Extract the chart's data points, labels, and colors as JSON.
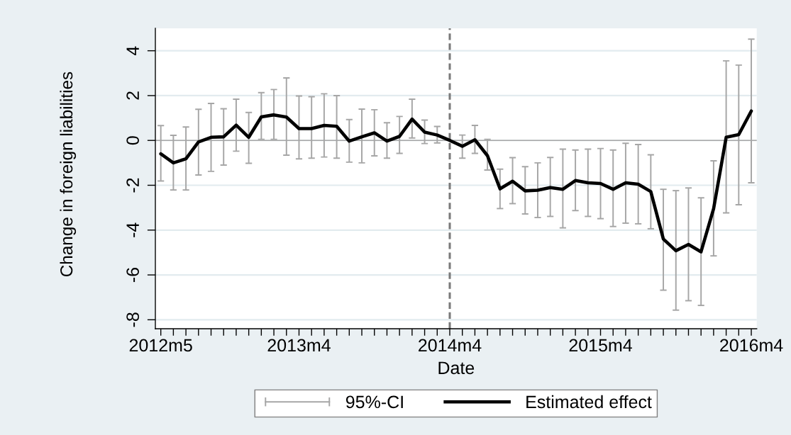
{
  "chart_data": {
    "type": "line",
    "xlabel": "Date",
    "ylabel": "Change in foreign liabilities",
    "x": [
      "2012-05",
      "2012-06",
      "2012-07",
      "2012-08",
      "2012-09",
      "2012-10",
      "2012-11",
      "2012-12",
      "2013-01",
      "2013-02",
      "2013-03",
      "2013-04",
      "2013-05",
      "2013-06",
      "2013-07",
      "2013-08",
      "2013-09",
      "2013-10",
      "2013-11",
      "2013-12",
      "2014-01",
      "2014-02",
      "2014-03",
      "2014-04",
      "2014-05",
      "2014-06",
      "2014-07",
      "2014-08",
      "2014-09",
      "2014-10",
      "2014-11",
      "2014-12",
      "2015-01",
      "2015-02",
      "2015-03",
      "2015-04",
      "2015-05",
      "2015-06",
      "2015-07",
      "2015-08",
      "2015-09",
      "2015-10",
      "2015-11",
      "2015-12",
      "2016-01",
      "2016-02",
      "2016-03",
      "2016-04"
    ],
    "series": [
      {
        "name": "Estimated effect",
        "color": "#000000",
        "values": [
          -0.6,
          -1.0,
          -0.82,
          -0.07,
          0.14,
          0.16,
          0.68,
          0.14,
          1.05,
          1.14,
          1.04,
          0.53,
          0.53,
          0.67,
          0.63,
          -0.03,
          0.16,
          0.34,
          -0.03,
          0.18,
          0.95,
          0.37,
          0.24,
          0.0,
          -0.26,
          0.03,
          -0.68,
          -2.16,
          -1.82,
          -2.25,
          -2.22,
          -2.1,
          -2.18,
          -1.79,
          -1.89,
          -1.92,
          -2.18,
          -1.89,
          -1.95,
          -2.28,
          -4.4,
          -4.92,
          -4.64,
          -4.97,
          -3.05,
          0.14,
          0.26,
          1.31
        ],
        "errors": [
          [
            -1.81,
            0.66
          ],
          [
            -2.21,
            0.23
          ],
          [
            -2.21,
            0.6
          ],
          [
            -1.54,
            1.39
          ],
          [
            -1.38,
            1.65
          ],
          [
            -1.1,
            1.41
          ],
          [
            -0.48,
            1.84
          ],
          [
            -1.02,
            1.25
          ],
          [
            0.05,
            2.13
          ],
          [
            0.05,
            2.27
          ],
          [
            -0.66,
            2.79
          ],
          [
            -0.82,
            1.98
          ],
          [
            -0.79,
            1.95
          ],
          [
            -0.74,
            2.08
          ],
          [
            -0.79,
            2.0
          ],
          [
            -0.97,
            0.93
          ],
          [
            -1.0,
            1.4
          ],
          [
            -0.69,
            1.37
          ],
          [
            -0.79,
            0.79
          ],
          [
            -0.58,
            1.07
          ],
          [
            0.11,
            1.84
          ],
          [
            -0.14,
            0.91
          ],
          [
            -0.11,
            0.62
          ],
          null,
          [
            -0.79,
            0.24
          ],
          [
            -0.58,
            0.67
          ],
          [
            -1.32,
            0.05
          ],
          [
            -3.04,
            -1.28
          ],
          [
            -2.82,
            -0.77
          ],
          [
            -3.28,
            -1.17
          ],
          [
            -3.44,
            -1.0
          ],
          [
            -3.39,
            -0.76
          ],
          [
            -3.9,
            -0.39
          ],
          [
            -3.13,
            -0.43
          ],
          [
            -3.39,
            -0.39
          ],
          [
            -3.49,
            -0.36
          ],
          [
            -3.84,
            -0.43
          ],
          [
            -3.69,
            -0.13
          ],
          [
            -3.72,
            -0.18
          ],
          [
            -3.94,
            -0.64
          ],
          [
            -6.68,
            -2.18
          ],
          [
            -7.57,
            -2.24
          ],
          [
            -7.15,
            -2.12
          ],
          [
            -7.36,
            -2.56
          ],
          [
            -5.15,
            -0.91
          ],
          [
            -3.23,
            3.55
          ],
          [
            -2.87,
            3.36
          ],
          [
            -1.89,
            4.52
          ]
        ]
      }
    ],
    "annotations": [
      "95%-CI"
    ],
    "xlim": [
      "2012-04-18",
      "2016-04-14"
    ],
    "ylim": [
      -8.4,
      5.0
    ],
    "xticks": [
      {
        "value": "2012-05",
        "label": "2012m5"
      },
      {
        "value": "2012-06",
        "label": null
      },
      {
        "value": "2012-07",
        "label": null
      },
      {
        "value": "2012-08",
        "label": null
      },
      {
        "value": "2012-09",
        "label": null
      },
      {
        "value": "2012-10",
        "label": null
      },
      {
        "value": "2012-11",
        "label": null
      },
      {
        "value": "2012-12",
        "label": null
      },
      {
        "value": "2013-01",
        "label": null
      },
      {
        "value": "2013-02",
        "label": null
      },
      {
        "value": "2013-03",
        "label": null
      },
      {
        "value": "2013-04",
        "label": "2013m4"
      },
      {
        "value": "2013-05",
        "label": null
      },
      {
        "value": "2013-06",
        "label": null
      },
      {
        "value": "2013-07",
        "label": null
      },
      {
        "value": "2013-08",
        "label": null
      },
      {
        "value": "2013-09",
        "label": null
      },
      {
        "value": "2013-10",
        "label": null
      },
      {
        "value": "2013-11",
        "label": null
      },
      {
        "value": "2013-12",
        "label": null
      },
      {
        "value": "2014-01",
        "label": null
      },
      {
        "value": "2014-02",
        "label": null
      },
      {
        "value": "2014-03",
        "label": null
      },
      {
        "value": "2014-04",
        "label": "2014m4"
      },
      {
        "value": "2014-05",
        "label": null
      },
      {
        "value": "2014-06",
        "label": null
      },
      {
        "value": "2014-07",
        "label": null
      },
      {
        "value": "2014-08",
        "label": null
      },
      {
        "value": "2014-09",
        "label": null
      },
      {
        "value": "2014-10",
        "label": null
      },
      {
        "value": "2014-11",
        "label": null
      },
      {
        "value": "2014-12",
        "label": null
      },
      {
        "value": "2015-01",
        "label": null
      },
      {
        "value": "2015-02",
        "label": null
      },
      {
        "value": "2015-03",
        "label": null
      },
      {
        "value": "2015-04",
        "label": "2015m4"
      },
      {
        "value": "2015-05",
        "label": null
      },
      {
        "value": "2015-06",
        "label": null
      },
      {
        "value": "2015-07",
        "label": null
      },
      {
        "value": "2015-08",
        "label": null
      },
      {
        "value": "2015-09",
        "label": null
      },
      {
        "value": "2015-10",
        "label": null
      },
      {
        "value": "2015-11",
        "label": null
      },
      {
        "value": "2015-12",
        "label": null
      },
      {
        "value": "2016-01",
        "label": null
      },
      {
        "value": "2016-02",
        "label": null
      },
      {
        "value": "2016-03",
        "label": null
      },
      {
        "value": "2016-04",
        "label": "2016m4"
      }
    ],
    "yticks": [
      -8,
      -6,
      -4,
      -2,
      0,
      2,
      4
    ],
    "grid": "y",
    "legend": "bottom",
    "ref_lines": [
      {
        "axis": "y",
        "value": 0,
        "color": "#a8a8a8",
        "line_style": "solid"
      },
      {
        "axis": "x",
        "value": "2014-04",
        "color": "#7a7a7a",
        "line_style": "dashed"
      }
    ]
  }
}
